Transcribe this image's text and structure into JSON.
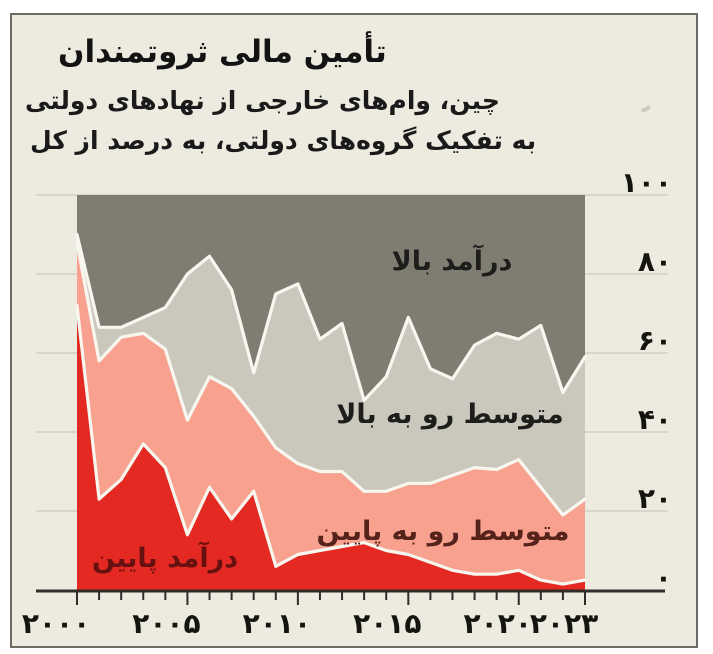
{
  "chart_data": {
    "type": "area",
    "stacked": true,
    "title": "تأمین مالی ثروتمندان",
    "subtitle_line1": "چین، وام‌های خارجی از نهادهای دولتی",
    "subtitle_line2": "به تفکیک گروه‌های دولتی، به درصد از کل",
    "x": [
      2000,
      2001,
      2002,
      2003,
      2004,
      2005,
      2006,
      2007,
      2008,
      2009,
      2010,
      2011,
      2012,
      2013,
      2014,
      2015,
      2016,
      2017,
      2018,
      2019,
      2020,
      2021,
      2022,
      2023
    ],
    "series": [
      {
        "name": "درآمد پایین",
        "name_en": "low-income",
        "color": "#e42822",
        "values": [
          72,
          23,
          28,
          37,
          31,
          14,
          26,
          18,
          25,
          6,
          9,
          10,
          11,
          12,
          10,
          9,
          7,
          5,
          4,
          4,
          5,
          2.5,
          1.5,
          2.5
        ]
      },
      {
        "name": "متوسط رو به پایین",
        "name_en": "lower-middle-income",
        "color": "#f8a18e",
        "values": [
          16,
          35,
          36,
          28,
          30,
          29,
          28,
          33,
          19,
          30,
          23,
          20,
          19,
          13,
          15,
          18,
          20,
          24,
          27,
          26.5,
          28,
          23.5,
          17.5,
          20.5
        ]
      },
      {
        "name": "متوسط رو به بالا",
        "name_en": "upper-middle-income",
        "color": "#cac8bc",
        "values": [
          2,
          8.5,
          2.5,
          4,
          10.5,
          37,
          30.5,
          25,
          11,
          39,
          45.5,
          33.5,
          37.5,
          23,
          29,
          42,
          29,
          24.5,
          31,
          34.5,
          30.5,
          41,
          31,
          36
        ]
      },
      {
        "name": "درآمد بالا",
        "name_en": "high-income",
        "color": "#7f7d71",
        "values": [
          10,
          33.5,
          33.5,
          31,
          28.5,
          20,
          15.5,
          24,
          45,
          25,
          22.5,
          36.5,
          32.5,
          52,
          46,
          31,
          44,
          46.5,
          38,
          35,
          36.5,
          33,
          50,
          41
        ]
      }
    ],
    "ylim": [
      0,
      100
    ],
    "unit": "percent of total",
    "grid": "horizontal",
    "legend": "inline-labels",
    "y_ticks": {
      "values": [
        0,
        20,
        40,
        60,
        80,
        100
      ],
      "labels": [
        "۰",
        "۲۰",
        "۴۰",
        "۶۰",
        "۸۰",
        "۱۰۰"
      ]
    },
    "x_ticks": {
      "values": [
        2000,
        2005,
        2010,
        2015,
        2020,
        2023
      ],
      "labels": [
        "۲۰۰۰",
        "۲۰۰۵",
        "۲۰۱۰",
        "۲۰۱۵",
        "۲۰۲۰",
        "۲۰۲۳"
      ]
    },
    "minor_x_ticks_every_year": true
  },
  "colors": {
    "background": "#edeadf",
    "frame_border": "#6b6a64",
    "gridline": "#d8d6cb",
    "axis": "#2e2d29",
    "boundary_stroke": "#f7f6ef",
    "tick_label": "#15150f",
    "label_high": "#1d1d1b",
    "label_upper_middle": "#1d1d1b",
    "label_lower_middle": "#56231c",
    "label_low": "#661110"
  }
}
